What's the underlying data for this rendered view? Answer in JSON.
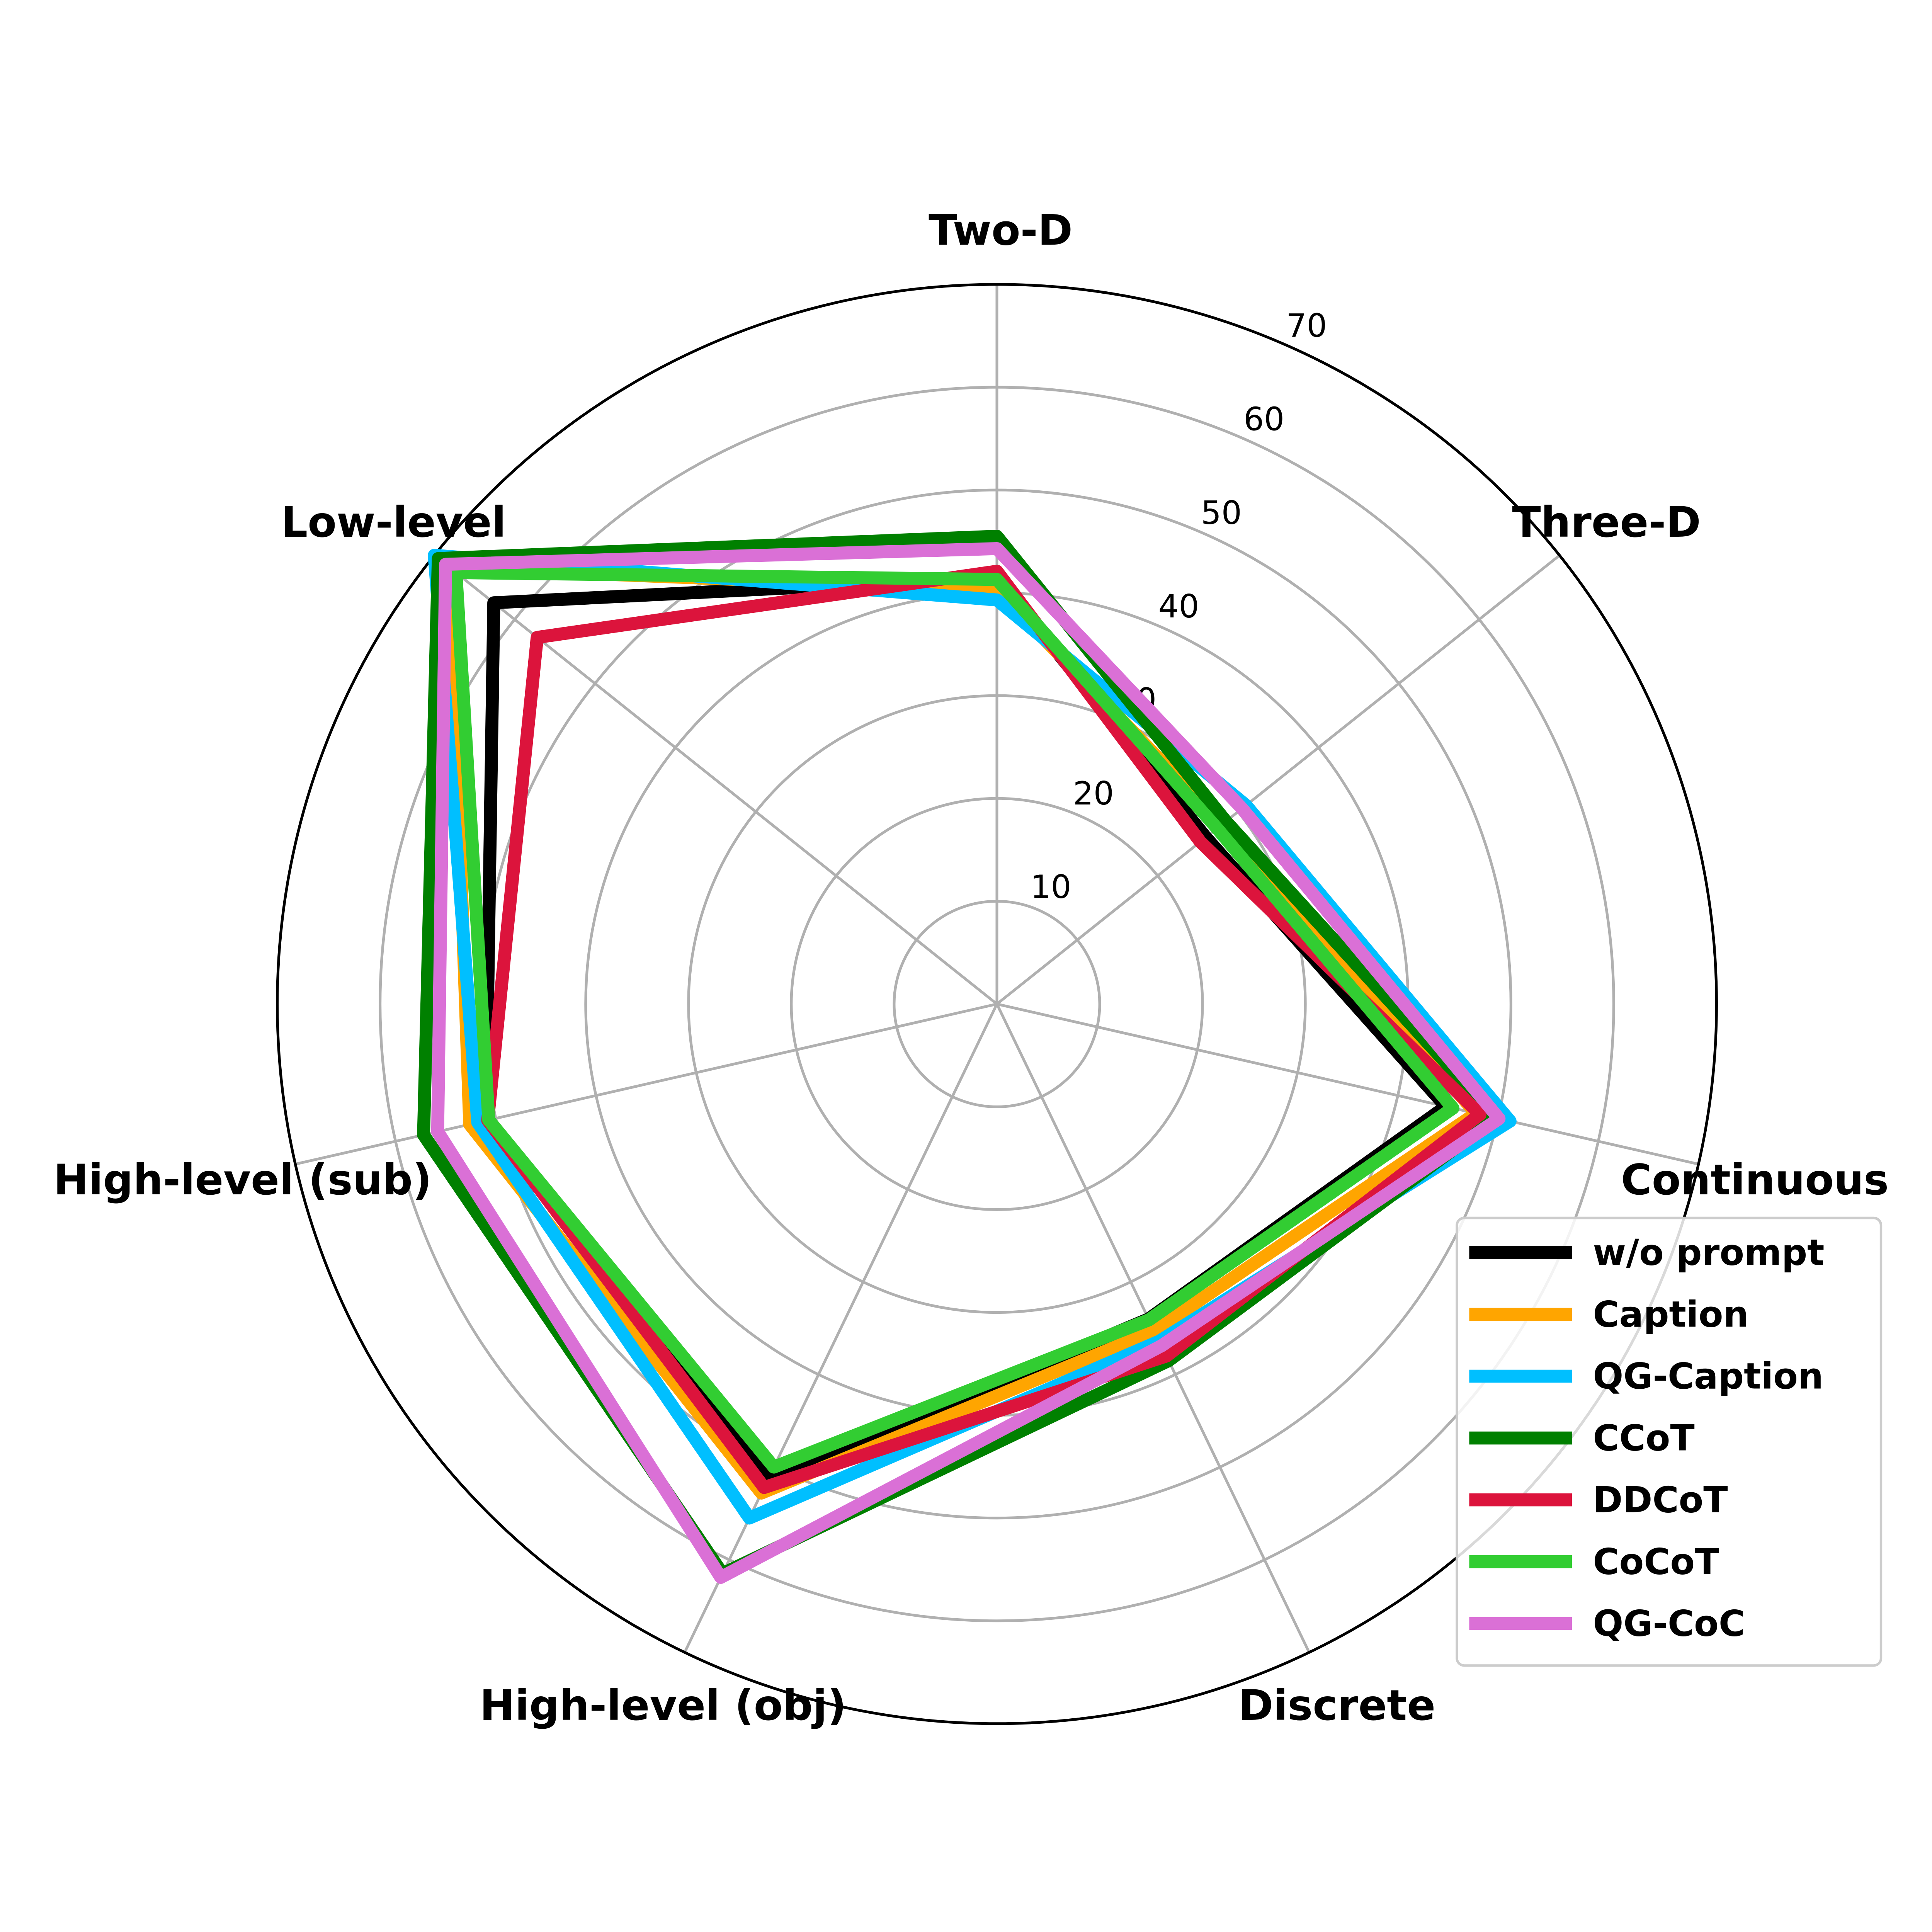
{
  "chart_data": {
    "type": "radar",
    "categories": [
      "Two-D",
      "Three-D",
      "Continuous",
      "Discrete",
      "High-level (obj)",
      "High-level (sub)",
      "Low-level"
    ],
    "radial_ticks": [
      "10",
      "20",
      "30",
      "40",
      "50",
      "60",
      "70"
    ],
    "rlim": [
      0,
      70
    ],
    "grid": true,
    "legend_position": "lower-right",
    "series": [
      {
        "name": "w/o prompt",
        "color": "#000000",
        "values": [
          41.5,
          26.0,
          44.8,
          34.0,
          51.3,
          51.0,
          62.6
        ]
      },
      {
        "name": "Caption",
        "color": "#FFA500",
        "values": [
          40.3,
          28.0,
          47.8,
          35.3,
          52.8,
          52.6,
          68.0
        ]
      },
      {
        "name": "QG-Caption",
        "color": "#00BFFF",
        "values": [
          39.3,
          31.0,
          51.2,
          36.4,
          55.5,
          51.8,
          70.0
        ]
      },
      {
        "name": "CCoT",
        "color": "#008000",
        "values": [
          45.5,
          28.5,
          49.8,
          38.5,
          61.5,
          57.2,
          69.5
        ]
      },
      {
        "name": "DDCoT",
        "color": "#DC143C",
        "values": [
          42.1,
          25.3,
          48.2,
          38.0,
          52.2,
          50.8,
          57.2
        ]
      },
      {
        "name": "CoCoT",
        "color": "#32CD32",
        "values": [
          41.3,
          27.4,
          45.5,
          34.1,
          50.0,
          50.7,
          67.3
        ]
      },
      {
        "name": "QG-CoC",
        "color": "#DA70D6",
        "values": [
          44.3,
          30.5,
          50.1,
          36.9,
          61.9,
          55.8,
          68.6
        ]
      }
    ]
  }
}
